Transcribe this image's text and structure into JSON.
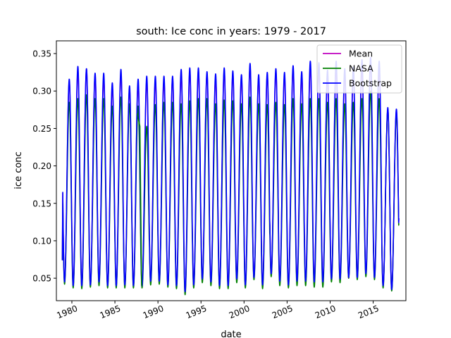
{
  "chart_data": {
    "type": "line",
    "title": "south: Ice conc in years: 1979 - 2017",
    "xlabel": "date",
    "ylabel": "ice conc",
    "xlim": [
      1978.2,
      2018.8
    ],
    "ylim": [
      0.02,
      0.367
    ],
    "x_ticks": [
      "1980",
      "1985",
      "1990",
      "1995",
      "2000",
      "2005",
      "2010",
      "2015"
    ],
    "x_tick_values": [
      1980,
      1985,
      1990,
      1995,
      2000,
      2005,
      2010,
      2015
    ],
    "y_ticks": [
      "0.05",
      "0.10",
      "0.15",
      "0.20",
      "0.25",
      "0.30",
      "0.35"
    ],
    "y_tick_values": [
      0.05,
      0.1,
      0.15,
      0.2,
      0.25,
      0.3,
      0.35
    ],
    "grid": false,
    "legend_position": "top-right",
    "x_start": 1978.9,
    "x_end": 2018.0,
    "start_value": 0.074,
    "end_value": 0.13,
    "nasa_end_value": 0.123,
    "nasa_anomaly": {
      "x": [
        1987.6,
        1987.9,
        1988.1
      ],
      "y": [
        0.27,
        0.253,
        0.04
      ]
    },
    "years": [
      1979,
      1980,
      1981,
      1982,
      1983,
      1984,
      1985,
      1986,
      1987,
      1988,
      1989,
      1990,
      1991,
      1992,
      1993,
      1994,
      1995,
      1996,
      1997,
      1998,
      1999,
      2000,
      2001,
      2002,
      2003,
      2004,
      2005,
      2006,
      2007,
      2008,
      2009,
      2010,
      2011,
      2012,
      2013,
      2014,
      2015,
      2016,
      2017
    ],
    "series": [
      {
        "name": "Mean",
        "color": "#bf00bf",
        "peak_values": [
          0.313,
          0.327,
          0.329,
          0.321,
          0.317,
          0.305,
          0.324,
          0.302,
          0.31,
          0.313,
          0.314,
          0.314,
          0.317,
          0.323,
          0.326,
          0.327,
          0.323,
          0.317,
          0.327,
          0.323,
          0.318,
          0.332,
          0.318,
          0.321,
          0.326,
          0.32,
          0.33,
          0.321,
          0.332,
          0.329,
          0.32,
          0.333,
          0.322,
          0.325,
          0.332,
          0.339,
          0.331,
          0.275,
          0.273
        ],
        "min_values": [
          0.045,
          0.04,
          0.04,
          0.04,
          0.045,
          0.04,
          0.04,
          0.04,
          0.04,
          0.04,
          0.045,
          0.045,
          0.04,
          0.04,
          0.03,
          0.04,
          0.048,
          0.045,
          0.04,
          0.04,
          0.048,
          0.04,
          0.05,
          0.04,
          0.055,
          0.045,
          0.04,
          0.045,
          0.045,
          0.045,
          0.045,
          0.048,
          0.048,
          0.05,
          0.05,
          0.055,
          0.05,
          0.04,
          0.035
        ]
      },
      {
        "name": "NASA",
        "color": "#008000",
        "peak_values": [
          0.285,
          0.29,
          0.295,
          0.29,
          0.29,
          0.28,
          0.292,
          0.283,
          0.28,
          0.253,
          0.282,
          0.285,
          0.285,
          0.283,
          0.287,
          0.29,
          0.29,
          0.283,
          0.288,
          0.287,
          0.283,
          0.292,
          0.283,
          0.282,
          0.285,
          0.282,
          0.29,
          0.283,
          0.29,
          0.29,
          0.285,
          0.29,
          0.283,
          0.285,
          0.29,
          0.3,
          0.29,
          0.275,
          0.27
        ],
        "min_values": [
          0.042,
          0.037,
          0.036,
          0.038,
          0.04,
          0.037,
          0.037,
          0.037,
          0.037,
          0.037,
          0.041,
          0.042,
          0.038,
          0.036,
          0.028,
          0.037,
          0.044,
          0.04,
          0.036,
          0.036,
          0.044,
          0.037,
          0.048,
          0.036,
          0.052,
          0.04,
          0.037,
          0.04,
          0.04,
          0.038,
          0.038,
          0.045,
          0.044,
          0.05,
          0.048,
          0.052,
          0.048,
          0.037,
          0.033
        ]
      },
      {
        "name": "Bootstrap",
        "color": "#0000ff",
        "peak_values": [
          0.316,
          0.333,
          0.33,
          0.324,
          0.324,
          0.311,
          0.329,
          0.307,
          0.316,
          0.32,
          0.32,
          0.32,
          0.32,
          0.329,
          0.331,
          0.331,
          0.326,
          0.323,
          0.331,
          0.327,
          0.322,
          0.337,
          0.322,
          0.325,
          0.33,
          0.325,
          0.334,
          0.326,
          0.34,
          0.338,
          0.328,
          0.34,
          0.33,
          0.332,
          0.342,
          0.345,
          0.34,
          0.278,
          0.276
        ],
        "min_values": [
          0.045,
          0.04,
          0.04,
          0.041,
          0.045,
          0.04,
          0.04,
          0.041,
          0.04,
          0.04,
          0.046,
          0.046,
          0.041,
          0.04,
          0.032,
          0.041,
          0.049,
          0.045,
          0.04,
          0.04,
          0.049,
          0.041,
          0.051,
          0.041,
          0.056,
          0.046,
          0.041,
          0.046,
          0.046,
          0.045,
          0.045,
          0.049,
          0.049,
          0.051,
          0.051,
          0.056,
          0.051,
          0.04,
          0.035
        ]
      }
    ]
  }
}
